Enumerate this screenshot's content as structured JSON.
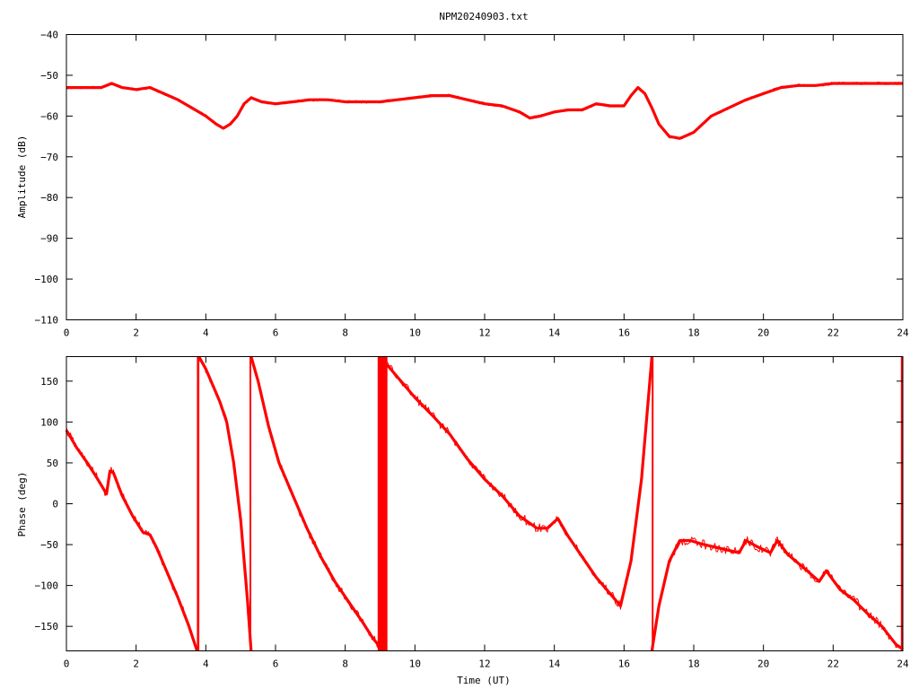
{
  "title": "NPM20240903.txt",
  "chart_data": [
    {
      "type": "line",
      "panel": "amplitude",
      "title": "NPM20240903.txt",
      "xlabel": "",
      "ylabel": "Amplitude (dB)",
      "xlim": [
        0,
        24
      ],
      "ylim": [
        -110,
        -40
      ],
      "xticks": [
        0,
        2,
        4,
        6,
        8,
        10,
        12,
        14,
        16,
        18,
        20,
        22,
        24
      ],
      "yticks": [
        -110,
        -100,
        -90,
        -80,
        -70,
        -60,
        -50,
        -40
      ],
      "xtick_labels": [
        "0",
        "2",
        "4",
        "6",
        "8",
        "10",
        "12",
        "14",
        "16",
        "18",
        "20",
        "22",
        "24"
      ],
      "ytick_labels": [
        "−110",
        "−100",
        "−90",
        "−80",
        "−70",
        "−60",
        "−50",
        "−40"
      ],
      "grid": false,
      "series": [
        {
          "color": "#ff0000",
          "x": [
            0,
            0.5,
            1.0,
            1.3,
            1.6,
            2.0,
            2.4,
            2.8,
            3.2,
            3.6,
            4.0,
            4.3,
            4.5,
            4.7,
            4.9,
            5.1,
            5.3,
            5.6,
            6.0,
            6.5,
            7.0,
            7.5,
            8.0,
            8.5,
            9.0,
            9.5,
            10.0,
            10.5,
            11.0,
            11.5,
            12.0,
            12.5,
            13.0,
            13.3,
            13.6,
            14.0,
            14.4,
            14.8,
            15.2,
            15.6,
            16.0,
            16.2,
            16.4,
            16.6,
            16.8,
            17.0,
            17.3,
            17.6,
            18.0,
            18.5,
            19.0,
            19.5,
            20.0,
            20.5,
            21.0,
            21.5,
            22.0,
            23.0,
            24.0
          ],
          "y": [
            -53,
            -53,
            -53,
            -52,
            -53,
            -53.5,
            -53,
            -54.5,
            -56,
            -58,
            -60,
            -62,
            -63,
            -62,
            -60,
            -57,
            -55.5,
            -56.5,
            -57,
            -56.5,
            -56,
            -56,
            -56.5,
            -56.5,
            -56.5,
            -56,
            -55.5,
            -55,
            -55,
            -56,
            -57,
            -57.5,
            -59,
            -60.5,
            -60,
            -59,
            -58.5,
            -58.5,
            -57,
            -57.5,
            -57.5,
            -55,
            -53,
            -54.5,
            -58,
            -62,
            -65,
            -65.5,
            -64,
            -60,
            -58,
            -56,
            -54.5,
            -53,
            -52.5,
            -52.5,
            -52,
            -52,
            -52
          ]
        }
      ]
    },
    {
      "type": "line",
      "panel": "phase",
      "title": "",
      "xlabel": "Time (UT)",
      "ylabel": "Phase (deg)",
      "xlim": [
        0,
        24
      ],
      "ylim": [
        -180,
        180
      ],
      "xticks": [
        0,
        2,
        4,
        6,
        8,
        10,
        12,
        14,
        16,
        18,
        20,
        22,
        24
      ],
      "yticks": [
        -150,
        -100,
        -50,
        0,
        50,
        100,
        150
      ],
      "xtick_labels": [
        "0",
        "2",
        "4",
        "6",
        "8",
        "10",
        "12",
        "14",
        "16",
        "18",
        "20",
        "22",
        "24"
      ],
      "ytick_labels": [
        "−150",
        "−100",
        "−50",
        "0",
        "50",
        "100",
        "150"
      ],
      "grid": false,
      "series": [
        {
          "color": "#ff0000",
          "x": [
            0,
            0.3,
            0.6,
            0.9,
            1.15,
            1.25,
            1.35,
            1.6,
            1.9,
            2.2,
            2.4,
            2.6,
            2.9,
            3.2,
            3.5,
            3.75
          ],
          "y": [
            90,
            68,
            50,
            30,
            12,
            40,
            38,
            10,
            -15,
            -35,
            -38,
            -55,
            -85,
            -115,
            -148,
            -180
          ]
        },
        {
          "color": "#ff0000",
          "x": [
            3.8,
            4.0,
            4.2,
            4.4,
            4.6,
            4.8,
            5.0,
            5.2,
            5.3
          ],
          "y": [
            180,
            165,
            145,
            125,
            100,
            50,
            -20,
            -120,
            -180
          ]
        },
        {
          "color": "#ff0000",
          "x": [
            5.3,
            5.5,
            5.8,
            6.1,
            6.5,
            6.9,
            7.3,
            7.7,
            8.1,
            8.5,
            8.8,
            9.0
          ],
          "y": [
            180,
            150,
            95,
            50,
            10,
            -30,
            -65,
            -95,
            -120,
            -145,
            -165,
            -175
          ]
        },
        {
          "color": "#ff0000",
          "x": [
            9.2,
            9.5,
            10.0,
            10.5,
            11.0,
            11.5,
            12.0,
            12.5,
            13.0,
            13.5,
            13.8,
            14.1,
            14.4,
            14.8,
            15.2,
            15.6,
            15.9,
            16.2,
            16.5,
            16.8
          ],
          "y": [
            170,
            155,
            130,
            108,
            85,
            55,
            30,
            10,
            -15,
            -30,
            -30,
            -18,
            -40,
            -65,
            -90,
            -110,
            -125,
            -70,
            30,
            180
          ]
        },
        {
          "color": "#ff0000",
          "x": [
            16.8,
            17.0,
            17.3,
            17.6,
            17.9,
            18.3,
            18.8,
            19.3,
            19.5,
            19.8,
            20.2,
            20.4,
            20.7,
            21.2,
            21.6,
            21.8,
            22.2,
            22.6,
            23.0,
            23.4,
            23.8,
            24.0
          ],
          "y": [
            -180,
            -125,
            -70,
            -45,
            -45,
            -50,
            -55,
            -60,
            -45,
            -52,
            -60,
            -45,
            -62,
            -80,
            -95,
            -82,
            -105,
            -118,
            -135,
            -150,
            -172,
            -178
          ]
        }
      ],
      "wrap_bars": [
        {
          "x": 3.78,
          "width": 0.07
        },
        {
          "x": 5.28,
          "width": 0.03
        },
        {
          "x": 9.07,
          "width": 0.28
        },
        {
          "x": 16.82,
          "width": 0.04
        },
        {
          "x": 23.97,
          "width": 0.05
        }
      ]
    }
  ]
}
